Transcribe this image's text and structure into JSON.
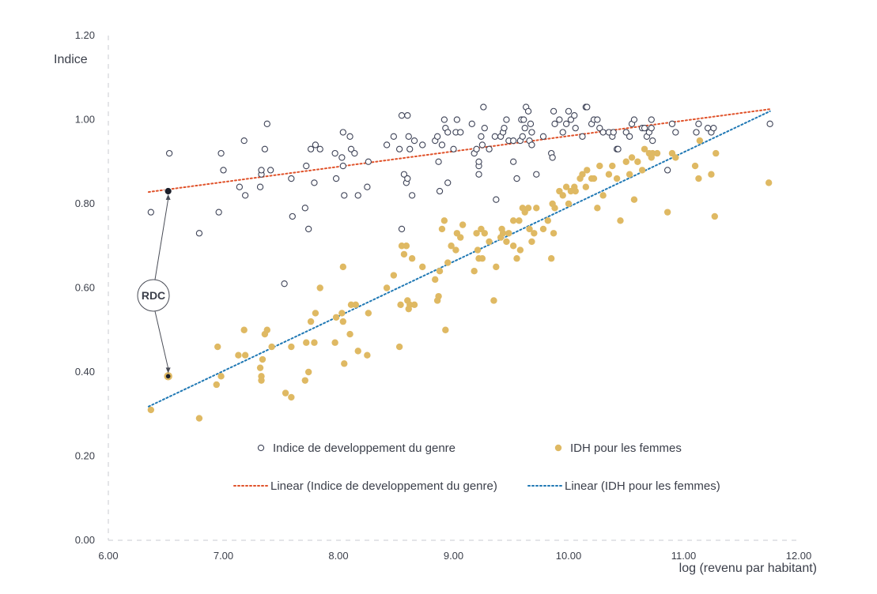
{
  "chart_data": {
    "type": "scatter",
    "xlabel": "log (revenu par habitant)",
    "ylabel": "Indice",
    "xlim": [
      6,
      12
    ],
    "ylim": [
      0,
      1.2
    ],
    "x_ticks": [
      "6.00",
      "7.00",
      "8.00",
      "9.00",
      "10.00",
      "11.00",
      "12.00"
    ],
    "y_ticks": [
      "0.00",
      "0.20",
      "0.40",
      "0.60",
      "0.80",
      "1.00",
      "1.20"
    ],
    "grid": false,
    "legend": "inside-bottom",
    "annotation": {
      "label": "RDC",
      "x": 6.52,
      "values": [
        0.83,
        0.39
      ]
    },
    "series": [
      {
        "name": "Indice de developpement du genre",
        "marker": "open-circle",
        "color": "#3f4458",
        "points": [
          [
            6.37,
            0.78
          ],
          [
            6.53,
            0.92
          ],
          [
            6.79,
            0.73
          ],
          [
            6.96,
            0.78
          ],
          [
            6.98,
            0.92
          ],
          [
            7.0,
            0.88
          ],
          [
            7.14,
            0.84
          ],
          [
            7.18,
            0.95
          ],
          [
            7.19,
            0.82
          ],
          [
            7.32,
            0.84
          ],
          [
            7.33,
            0.87
          ],
          [
            7.33,
            0.88
          ],
          [
            7.36,
            0.93
          ],
          [
            7.38,
            0.99
          ],
          [
            7.41,
            0.88
          ],
          [
            7.53,
            0.61
          ],
          [
            7.59,
            0.86
          ],
          [
            7.6,
            0.77
          ],
          [
            7.71,
            0.79
          ],
          [
            7.72,
            0.89
          ],
          [
            7.74,
            0.74
          ],
          [
            7.76,
            0.93
          ],
          [
            7.79,
            0.85
          ],
          [
            7.8,
            0.94
          ],
          [
            7.84,
            0.93
          ],
          [
            7.97,
            0.92
          ],
          [
            7.98,
            0.86
          ],
          [
            8.03,
            0.91
          ],
          [
            8.04,
            0.89
          ],
          [
            8.04,
            0.97
          ],
          [
            8.05,
            0.82
          ],
          [
            8.1,
            0.96
          ],
          [
            8.11,
            0.93
          ],
          [
            8.14,
            0.92
          ],
          [
            8.17,
            0.82
          ],
          [
            8.25,
            0.84
          ],
          [
            8.26,
            0.9
          ],
          [
            8.42,
            0.94
          ],
          [
            8.48,
            0.96
          ],
          [
            8.53,
            0.93
          ],
          [
            8.55,
            0.74
          ],
          [
            8.55,
            1.01
          ],
          [
            8.57,
            0.87
          ],
          [
            8.59,
            0.85
          ],
          [
            8.6,
            1.01
          ],
          [
            8.6,
            0.86
          ],
          [
            8.61,
            0.96
          ],
          [
            8.62,
            0.93
          ],
          [
            8.64,
            0.82
          ],
          [
            8.66,
            0.95
          ],
          [
            8.73,
            0.94
          ],
          [
            8.84,
            0.95
          ],
          [
            8.86,
            0.96
          ],
          [
            8.87,
            0.9
          ],
          [
            8.88,
            0.83
          ],
          [
            8.9,
            0.94
          ],
          [
            8.92,
            1.0
          ],
          [
            8.93,
            0.98
          ],
          [
            8.95,
            0.85
          ],
          [
            8.95,
            0.97
          ],
          [
            9.0,
            0.93
          ],
          [
            9.02,
            0.97
          ],
          [
            9.03,
            1.0
          ],
          [
            9.06,
            0.97
          ],
          [
            9.16,
            0.99
          ],
          [
            9.18,
            0.92
          ],
          [
            9.2,
            0.93
          ],
          [
            9.22,
            0.87
          ],
          [
            9.22,
            0.89
          ],
          [
            9.22,
            0.9
          ],
          [
            9.24,
            0.96
          ],
          [
            9.25,
            0.94
          ],
          [
            9.26,
            1.03
          ],
          [
            9.27,
            0.98
          ],
          [
            9.31,
            0.93
          ],
          [
            9.36,
            0.96
          ],
          [
            9.37,
            0.81
          ],
          [
            9.41,
            0.96
          ],
          [
            9.43,
            0.97
          ],
          [
            9.44,
            0.98
          ],
          [
            9.46,
            1.0
          ],
          [
            9.48,
            0.95
          ],
          [
            9.52,
            0.9
          ],
          [
            9.52,
            0.95
          ],
          [
            9.55,
            0.86
          ],
          [
            9.58,
            0.95
          ],
          [
            9.59,
            1.0
          ],
          [
            9.6,
            0.96
          ],
          [
            9.61,
            1.0
          ],
          [
            9.62,
            0.98
          ],
          [
            9.63,
            1.03
          ],
          [
            9.65,
            1.02
          ],
          [
            9.66,
            0.95
          ],
          [
            9.67,
            0.99
          ],
          [
            9.68,
            0.97
          ],
          [
            9.68,
            0.94
          ],
          [
            9.72,
            0.87
          ],
          [
            9.78,
            0.96
          ],
          [
            9.85,
            0.92
          ],
          [
            9.86,
            0.91
          ],
          [
            9.87,
            1.02
          ],
          [
            9.88,
            0.99
          ],
          [
            9.92,
            1.0
          ],
          [
            9.95,
            0.97
          ],
          [
            9.98,
            0.99
          ],
          [
            10.0,
            1.02
          ],
          [
            10.02,
            1.0
          ],
          [
            10.05,
            1.01
          ],
          [
            10.06,
            0.98
          ],
          [
            10.12,
            0.96
          ],
          [
            10.15,
            1.03
          ],
          [
            10.16,
            1.03
          ],
          [
            10.2,
            0.99
          ],
          [
            10.22,
            1.0
          ],
          [
            10.25,
            1.0
          ],
          [
            10.27,
            0.98
          ],
          [
            10.3,
            0.97
          ],
          [
            10.35,
            0.97
          ],
          [
            10.38,
            0.96
          ],
          [
            10.39,
            0.97
          ],
          [
            10.42,
            0.93
          ],
          [
            10.43,
            0.93
          ],
          [
            10.5,
            0.97
          ],
          [
            10.53,
            0.96
          ],
          [
            10.55,
            0.99
          ],
          [
            10.57,
            1.0
          ],
          [
            10.64,
            0.98
          ],
          [
            10.66,
            0.98
          ],
          [
            10.68,
            0.96
          ],
          [
            10.7,
            0.97
          ],
          [
            10.72,
            0.98
          ],
          [
            10.73,
            0.95
          ],
          [
            10.72,
            1.0
          ],
          [
            10.86,
            0.88
          ],
          [
            10.9,
            0.99
          ],
          [
            10.93,
            0.97
          ],
          [
            11.11,
            0.97
          ],
          [
            11.13,
            0.99
          ],
          [
            11.21,
            0.98
          ],
          [
            11.24,
            0.97
          ],
          [
            11.26,
            0.98
          ],
          [
            11.75,
            0.99
          ],
          [
            6.52,
            0.83
          ]
        ]
      },
      {
        "name": "IDH pour les femmes",
        "marker": "filled-circle",
        "color": "#dfb963",
        "points": [
          [
            6.37,
            0.31
          ],
          [
            6.52,
            0.39
          ],
          [
            6.79,
            0.29
          ],
          [
            6.94,
            0.37
          ],
          [
            6.95,
            0.46
          ],
          [
            6.98,
            0.39
          ],
          [
            7.13,
            0.44
          ],
          [
            7.18,
            0.5
          ],
          [
            7.19,
            0.44
          ],
          [
            7.32,
            0.41
          ],
          [
            7.33,
            0.39
          ],
          [
            7.33,
            0.38
          ],
          [
            7.34,
            0.43
          ],
          [
            7.36,
            0.49
          ],
          [
            7.38,
            0.5
          ],
          [
            7.42,
            0.46
          ],
          [
            7.54,
            0.35
          ],
          [
            7.59,
            0.34
          ],
          [
            7.59,
            0.46
          ],
          [
            7.71,
            0.38
          ],
          [
            7.72,
            0.47
          ],
          [
            7.74,
            0.4
          ],
          [
            7.76,
            0.52
          ],
          [
            7.79,
            0.47
          ],
          [
            7.8,
            0.54
          ],
          [
            7.84,
            0.6
          ],
          [
            7.97,
            0.47
          ],
          [
            7.98,
            0.53
          ],
          [
            8.03,
            0.54
          ],
          [
            8.04,
            0.52
          ],
          [
            8.04,
            0.65
          ],
          [
            8.05,
            0.42
          ],
          [
            8.1,
            0.49
          ],
          [
            8.11,
            0.56
          ],
          [
            8.15,
            0.56
          ],
          [
            8.17,
            0.45
          ],
          [
            8.25,
            0.44
          ],
          [
            8.26,
            0.54
          ],
          [
            8.42,
            0.6
          ],
          [
            8.48,
            0.63
          ],
          [
            8.53,
            0.46
          ],
          [
            8.54,
            0.56
          ],
          [
            8.55,
            0.7
          ],
          [
            8.57,
            0.68
          ],
          [
            8.59,
            0.7
          ],
          [
            8.6,
            0.57
          ],
          [
            8.61,
            0.55
          ],
          [
            8.62,
            0.56
          ],
          [
            8.64,
            0.67
          ],
          [
            8.66,
            0.56
          ],
          [
            8.73,
            0.65
          ],
          [
            8.84,
            0.62
          ],
          [
            8.86,
            0.57
          ],
          [
            8.87,
            0.58
          ],
          [
            8.88,
            0.64
          ],
          [
            8.9,
            0.74
          ],
          [
            8.92,
            0.76
          ],
          [
            8.93,
            0.5
          ],
          [
            8.95,
            0.66
          ],
          [
            8.98,
            0.7
          ],
          [
            9.02,
            0.69
          ],
          [
            9.03,
            0.73
          ],
          [
            9.06,
            0.72
          ],
          [
            9.08,
            0.75
          ],
          [
            9.18,
            0.64
          ],
          [
            9.2,
            0.73
          ],
          [
            9.21,
            0.69
          ],
          [
            9.22,
            0.67
          ],
          [
            9.24,
            0.74
          ],
          [
            9.25,
            0.67
          ],
          [
            9.27,
            0.73
          ],
          [
            9.31,
            0.71
          ],
          [
            9.35,
            0.57
          ],
          [
            9.37,
            0.65
          ],
          [
            9.41,
            0.72
          ],
          [
            9.42,
            0.74
          ],
          [
            9.43,
            0.73
          ],
          [
            9.46,
            0.71
          ],
          [
            9.48,
            0.73
          ],
          [
            9.52,
            0.7
          ],
          [
            9.52,
            0.76
          ],
          [
            9.55,
            0.67
          ],
          [
            9.57,
            0.76
          ],
          [
            9.58,
            0.69
          ],
          [
            9.6,
            0.79
          ],
          [
            9.62,
            0.78
          ],
          [
            9.65,
            0.79
          ],
          [
            9.66,
            0.74
          ],
          [
            9.68,
            0.71
          ],
          [
            9.7,
            0.73
          ],
          [
            9.72,
            0.79
          ],
          [
            9.78,
            0.74
          ],
          [
            9.82,
            0.76
          ],
          [
            9.85,
            0.67
          ],
          [
            9.86,
            0.8
          ],
          [
            9.87,
            0.73
          ],
          [
            9.88,
            0.79
          ],
          [
            9.92,
            0.83
          ],
          [
            9.95,
            0.82
          ],
          [
            9.98,
            0.84
          ],
          [
            10.0,
            0.8
          ],
          [
            10.02,
            0.83
          ],
          [
            10.05,
            0.84
          ],
          [
            10.06,
            0.83
          ],
          [
            10.1,
            0.86
          ],
          [
            10.12,
            0.87
          ],
          [
            10.15,
            0.84
          ],
          [
            10.16,
            0.88
          ],
          [
            10.2,
            0.86
          ],
          [
            10.22,
            0.86
          ],
          [
            10.25,
            0.79
          ],
          [
            10.27,
            0.89
          ],
          [
            10.3,
            0.82
          ],
          [
            10.35,
            0.87
          ],
          [
            10.38,
            0.89
          ],
          [
            10.42,
            0.86
          ],
          [
            10.45,
            0.76
          ],
          [
            10.5,
            0.9
          ],
          [
            10.53,
            0.87
          ],
          [
            10.55,
            0.91
          ],
          [
            10.57,
            0.81
          ],
          [
            10.6,
            0.9
          ],
          [
            10.64,
            0.88
          ],
          [
            10.66,
            0.93
          ],
          [
            10.7,
            0.92
          ],
          [
            10.72,
            0.91
          ],
          [
            10.73,
            0.92
          ],
          [
            10.77,
            0.92
          ],
          [
            10.86,
            0.78
          ],
          [
            10.9,
            0.92
          ],
          [
            10.93,
            0.91
          ],
          [
            11.1,
            0.89
          ],
          [
            11.13,
            0.86
          ],
          [
            11.14,
            0.95
          ],
          [
            11.24,
            0.87
          ],
          [
            11.27,
            0.77
          ],
          [
            11.28,
            0.92
          ],
          [
            11.74,
            0.85
          ]
        ]
      }
    ],
    "trendlines": [
      {
        "name": "Linear (Indice de developpement du genre)",
        "color": "#e0522a",
        "x": [
          6.35,
          11.75
        ],
        "y": [
          0.828,
          1.025
        ]
      },
      {
        "name": "Linear (IDH pour les femmes)",
        "color": "#1f78b4",
        "x": [
          6.35,
          11.75
        ],
        "y": [
          0.318,
          1.02
        ]
      }
    ]
  },
  "legend": {
    "items": [
      {
        "label": "Indice de developpement du genre",
        "kind": "open-circle",
        "color": "#3f4458"
      },
      {
        "label": "IDH pour les femmes",
        "kind": "filled-circle",
        "color": "#dfb963"
      },
      {
        "label": "Linear (Indice de developpement du genre)",
        "kind": "dotted-line",
        "color": "#e0522a"
      },
      {
        "label": "Linear (IDH pour les femmes)",
        "kind": "dotted-line",
        "color": "#1f78b4"
      }
    ]
  },
  "colors": {
    "axis": "#c9cbd1",
    "text": "#3b3f4a",
    "annotation": "#4a4d57"
  }
}
